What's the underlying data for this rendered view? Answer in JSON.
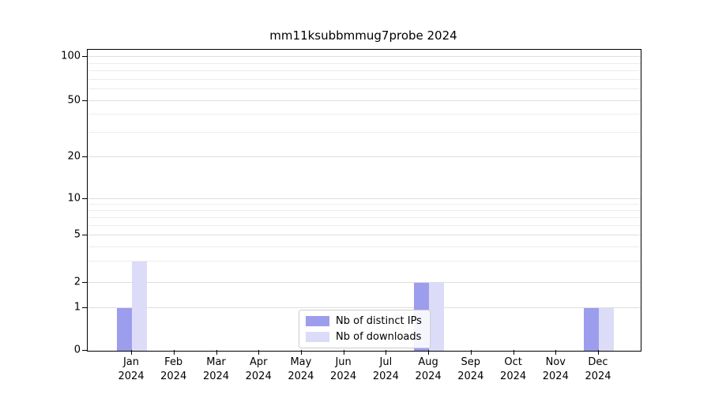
{
  "chart_data": {
    "type": "bar",
    "title": "mm11ksubbmmug7probe 2024",
    "categories": [
      "Jan",
      "Feb",
      "Mar",
      "Apr",
      "May",
      "Jun",
      "Jul",
      "Aug",
      "Sep",
      "Oct",
      "Nov",
      "Dec"
    ],
    "year_label": "2024",
    "series": [
      {
        "name": "Nb of distinct IPs",
        "color": "#9d9dee",
        "values": [
          1,
          0,
          0,
          0,
          0,
          0,
          0,
          2,
          0,
          0,
          0,
          1
        ]
      },
      {
        "name": "Nb of downloads",
        "color": "#dcdcf8",
        "values": [
          3,
          0,
          0,
          0,
          0,
          0,
          0,
          2,
          0,
          0,
          0,
          1
        ]
      }
    ],
    "yticks": [
      0,
      1,
      2,
      5,
      10,
      20,
      50,
      100
    ],
    "yscale": "symlog",
    "ylim": [
      0,
      130
    ],
    "grid": true,
    "legend_position": "lower center"
  }
}
